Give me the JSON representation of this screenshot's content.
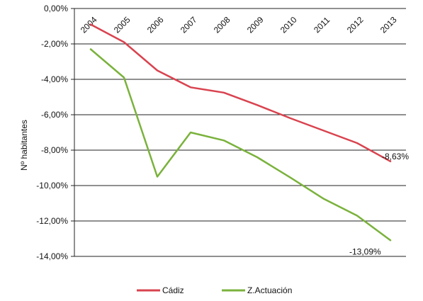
{
  "chart_data": {
    "type": "line",
    "title": "",
    "xlabel": "",
    "ylabel": "Nº habitantes",
    "categories": [
      "2004",
      "2005",
      "2006",
      "2007",
      "2008",
      "2009",
      "2010",
      "2011",
      "2012",
      "2013"
    ],
    "ylim": [
      -14,
      0
    ],
    "yticks": [
      0,
      -2,
      -4,
      -6,
      -8,
      -10,
      -12,
      -14
    ],
    "ytick_labels": [
      "0,00%",
      "-2,00%",
      "-4,00%",
      "-6,00%",
      "-8,00%",
      "-10,00%",
      "-12,00%",
      "-14,00%"
    ],
    "grid": true,
    "legend_position": "bottom",
    "series": [
      {
        "name": "Cádiz",
        "color": "#d9434f",
        "values": [
          -0.9,
          -1.9,
          -3.5,
          -4.45,
          -4.75,
          -5.45,
          -6.2,
          -6.9,
          -7.6,
          -8.63
        ],
        "end_label": "-8,63%"
      },
      {
        "name": "Z.Actuación",
        "color": "#7ab23c",
        "values": [
          -2.3,
          -3.9,
          -9.5,
          -7.0,
          -7.45,
          -8.4,
          -9.55,
          -10.75,
          -11.7,
          -13.09
        ],
        "end_label": "-13,09%"
      }
    ]
  }
}
